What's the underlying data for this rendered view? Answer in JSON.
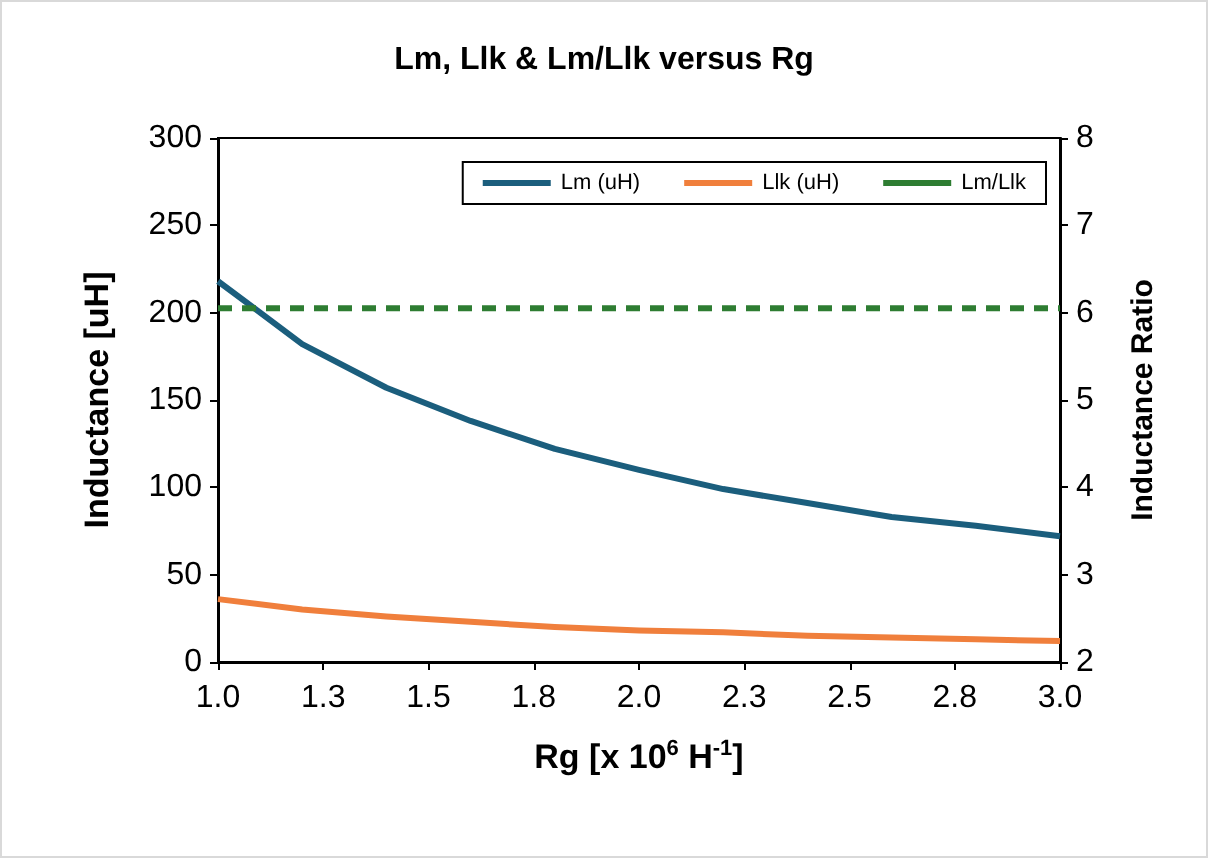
{
  "chart_data": {
    "type": "line",
    "title": "Lm, Llk & Lm/Llk versus Rg",
    "xlabel": "Rg [x 10$^{6}$ H$^{-1}$]",
    "ylabel": "Inductance [uH]",
    "y2label": "Inductance Ratio",
    "x": [
      1.0,
      1.2,
      1.4,
      1.6,
      1.8,
      2.0,
      2.2,
      2.4,
      2.6,
      2.8,
      3.0
    ],
    "series": [
      {
        "name": "Lm (uH)",
        "color": "#1b5e7d",
        "values": [
          218,
          182,
          157,
          138,
          122,
          110,
          99,
          91,
          83,
          78,
          72
        ]
      },
      {
        "name": "Llk (uH)",
        "color": "#f07f3c",
        "values": [
          36,
          30,
          26,
          23,
          20,
          18,
          17,
          15,
          14,
          13,
          12
        ]
      },
      {
        "name": "Lm/Llk",
        "color": "#2e7d32",
        "axis": "y2",
        "line_style": "dashed",
        "values": [
          6.05,
          6.05,
          6.05,
          6.05,
          6.05,
          6.05,
          6.05,
          6.05,
          6.05,
          6.05,
          6.05
        ]
      }
    ],
    "xlim": [
      1.0,
      3.0
    ],
    "xticks": [
      {
        "value": 1,
        "label": "1.0"
      },
      {
        "value": 1.25,
        "label": "1.3"
      },
      1.5,
      {
        "value": 1.75,
        "label": "1.8"
      },
      {
        "value": 2,
        "label": "2.0"
      },
      {
        "value": 2.25,
        "label": "2.3"
      },
      2.5,
      {
        "value": 2.75,
        "label": "2.8"
      },
      {
        "value": 3,
        "label": "3.0"
      }
    ],
    "ylim": [
      0,
      300
    ],
    "yticks": [
      0,
      50,
      100,
      150,
      200,
      250,
      300
    ],
    "y2lim": [
      2,
      8
    ],
    "y2ticks": [
      2,
      3,
      4,
      5,
      6,
      7,
      8
    ],
    "grid": false,
    "legend": "top right",
    "marker": "none",
    "line_style": "solid"
  }
}
